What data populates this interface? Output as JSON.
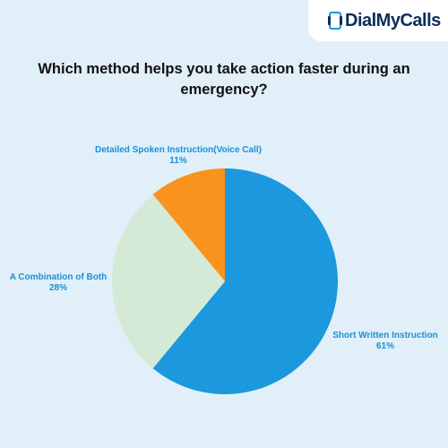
{
  "logo": {
    "text": "DialMyCalls",
    "icon": "phone-device-icon"
  },
  "colors": {
    "background": "#e1eff9",
    "blue": "#1b98de",
    "green": "#d4ead6",
    "orange": "#f9931e",
    "label": "#1b90d4"
  },
  "chart_data": {
    "type": "pie",
    "title": "Which method helps you take action faster during an emergency?",
    "slices": [
      {
        "label": "Short Written Instruction",
        "percent_label": "61%",
        "value": 61,
        "color": "#1b98de"
      },
      {
        "label": "A Combination of Both",
        "percent_label": "28%",
        "value": 28,
        "color": "#d4ead6"
      },
      {
        "label": "Detailed Spoken Instruction(Voice Call)",
        "percent_label": "11%",
        "value": 11,
        "color": "#f9931e"
      }
    ]
  }
}
